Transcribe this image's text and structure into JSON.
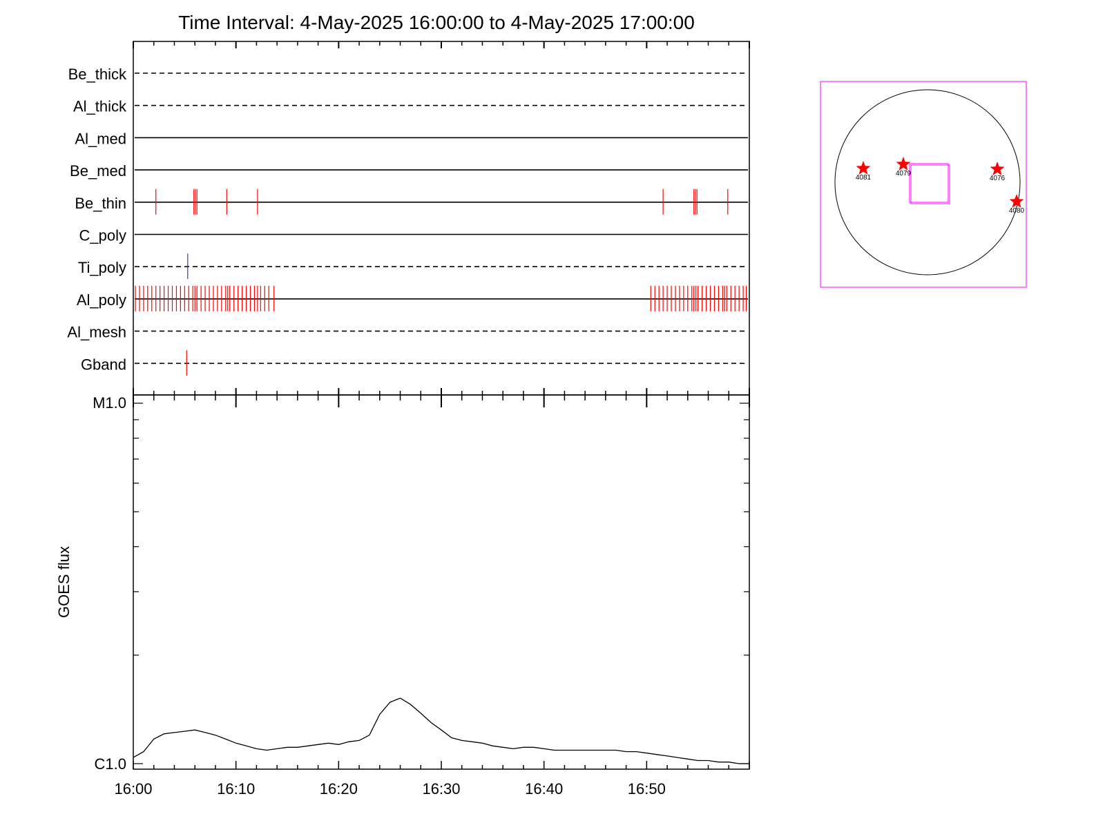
{
  "chart_data": [
    {
      "type": "timeline",
      "title": "Time Interval:  4-May-2025 16:00:00 to  4-May-2025 17:00:00",
      "xlim": [
        "16:00",
        "17:00"
      ],
      "rows": [
        {
          "name": "Be_thick",
          "line": "dashed",
          "marks": []
        },
        {
          "name": "Al_thick",
          "line": "dashed",
          "marks": []
        },
        {
          "name": "Al_med",
          "line": "solid",
          "marks": []
        },
        {
          "name": "Be_med",
          "line": "solid",
          "marks": []
        },
        {
          "name": "Be_thin",
          "line": "solid",
          "marks": [
            {
              "color": "#ff0000",
              "t": [
                2.2,
                5.9,
                6.05,
                6.2,
                9.1,
                12.1,
                51.6,
                54.6,
                54.75,
                54.9,
                57.9
              ]
            }
          ]
        },
        {
          "name": "C_poly",
          "line": "solid",
          "marks": []
        },
        {
          "name": "Ti_poly",
          "line": "dashed",
          "marks": [
            {
              "color": "#3a3aa8",
              "t": [
                5.3
              ]
            }
          ]
        },
        {
          "name": "Al_poly",
          "line": "solid",
          "marks": [
            {
              "color": "#ff0000",
              "t": [
                0.2,
                0.6,
                1.0,
                1.4,
                1.8,
                2.2,
                2.6,
                3.0,
                3.4,
                3.8,
                4.2,
                4.6,
                5.0,
                5.4,
                5.8,
                6.0,
                6.2,
                6.6,
                7.0,
                7.4,
                7.8,
                8.2,
                8.6,
                9.0,
                9.2,
                9.4,
                9.8,
                10.2,
                10.6,
                11.0,
                11.4,
                11.8,
                12.1,
                12.4,
                12.8,
                13.2,
                13.7,
                50.4,
                50.8,
                51.2,
                51.6,
                52.0,
                52.4,
                52.8,
                53.2,
                53.6,
                54.0,
                54.4,
                54.6,
                54.8,
                55.0,
                55.4,
                55.8,
                56.2,
                56.6,
                57.0,
                57.4,
                57.6,
                57.8,
                58.2,
                58.6,
                59.0,
                59.4,
                59.7
              ]
            }
          ]
        },
        {
          "name": "Al_mesh",
          "line": "dashed",
          "marks": []
        },
        {
          "name": "Gband",
          "line": "dashed",
          "marks": [
            {
              "color": "#ff0000",
              "t": [
                5.2
              ]
            }
          ]
        }
      ]
    },
    {
      "type": "line",
      "ylabel": "GOES flux",
      "y_scale": "log",
      "ylim": [
        1e-06,
        1e-05
      ],
      "yticks": [
        "C1.0",
        "M1.0"
      ],
      "xticklabels": [
        "16:00",
        "16:10",
        "16:20",
        "16:30",
        "16:40",
        "16:50"
      ],
      "color": "#000000",
      "series": [
        {
          "x": [
            0,
            1,
            2,
            3,
            4,
            5,
            6,
            7,
            8,
            9,
            10,
            11,
            12,
            13,
            14,
            15,
            16,
            17,
            18,
            19,
            20,
            21,
            22,
            23,
            24,
            25,
            26,
            27,
            28,
            29,
            30,
            31,
            32,
            33,
            34,
            35,
            36,
            37,
            38,
            39,
            40,
            41,
            42,
            43,
            44,
            45,
            46,
            47,
            48,
            49,
            50,
            51,
            52,
            53,
            54,
            55,
            56,
            57,
            58,
            59,
            60
          ],
          "y": [
            1.04e-06,
            1.08e-06,
            1.17e-06,
            1.21e-06,
            1.22e-06,
            1.23e-06,
            1.24e-06,
            1.22e-06,
            1.2e-06,
            1.17e-06,
            1.14e-06,
            1.12e-06,
            1.1e-06,
            1.09e-06,
            1.1e-06,
            1.11e-06,
            1.11e-06,
            1.12e-06,
            1.13e-06,
            1.14e-06,
            1.13e-06,
            1.15e-06,
            1.16e-06,
            1.2e-06,
            1.37e-06,
            1.48e-06,
            1.52e-06,
            1.46e-06,
            1.38e-06,
            1.3e-06,
            1.24e-06,
            1.18e-06,
            1.16e-06,
            1.15e-06,
            1.14e-06,
            1.12e-06,
            1.11e-06,
            1.1e-06,
            1.11e-06,
            1.11e-06,
            1.1e-06,
            1.09e-06,
            1.09e-06,
            1.09e-06,
            1.09e-06,
            1.09e-06,
            1.09e-06,
            1.09e-06,
            1.08e-06,
            1.08e-06,
            1.07e-06,
            1.06e-06,
            1.05e-06,
            1.04e-06,
            1.03e-06,
            1.02e-06,
            1.02e-06,
            1.01e-06,
            1.01e-06,
            1e-06,
            1e-06
          ]
        }
      ]
    },
    {
      "type": "locator",
      "frame_color": "#ff00ff",
      "star_color": "#ff0000",
      "active_regions": [
        {
          "label": "4081"
        },
        {
          "label": "4079"
        },
        {
          "label": "4076"
        },
        {
          "label": "4080"
        }
      ]
    }
  ]
}
